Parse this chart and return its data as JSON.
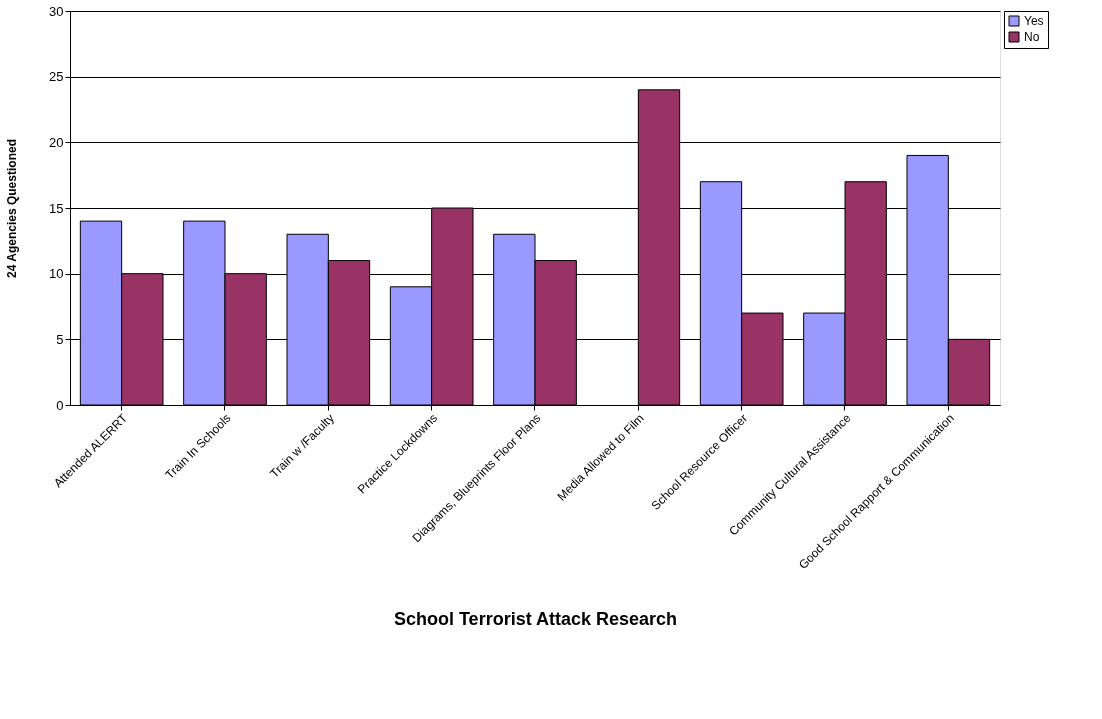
{
  "chart_data": {
    "type": "bar",
    "xlabel": "School Terrorist Attack Research",
    "ylabel": "24 Agencies Questioned",
    "categories": [
      "Attended ALERRT",
      "Train In Schools",
      "Train w /Faculty",
      "Practice Lockdowns",
      "Diagrams, Blueprints Floor Plans",
      "Media Allowed to Film",
      "School Resource Officer",
      "Community Cultural Assistance",
      "Good School Rapport & Communication"
    ],
    "series": [
      {
        "name": "Yes",
        "color": "#9999ff",
        "values": [
          14,
          14,
          13,
          9,
          13,
          null,
          17,
          7,
          19
        ]
      },
      {
        "name": "No",
        "color": "#993366",
        "values": [
          10,
          10,
          11,
          15,
          11,
          24,
          7,
          17,
          5
        ]
      }
    ],
    "ylim": [
      0,
      30
    ],
    "yticks": [
      0,
      5,
      10,
      15,
      20,
      25,
      30
    ],
    "grid": "y",
    "legend": "right"
  }
}
